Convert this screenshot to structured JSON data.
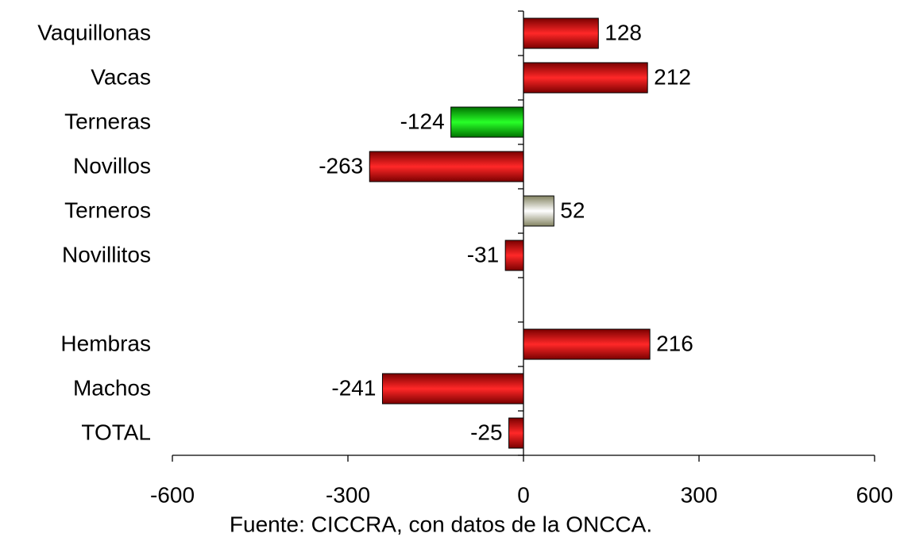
{
  "chart_data": {
    "type": "hbar",
    "categories": [
      "Vaquillonas",
      "Vacas",
      "Terneras",
      "Novillos",
      "Terneros",
      "Novillitos",
      null,
      "Hembras",
      "Machos",
      "TOTAL"
    ],
    "values": [
      128,
      212,
      -124,
      -263,
      52,
      -31,
      null,
      216,
      -241,
      -25
    ],
    "colors": [
      "#e00000",
      "#e00000",
      "#00d000",
      "#e00000",
      "#eeeeb0",
      "#e00000",
      null,
      "#e00000",
      "#e00000",
      "#e00000"
    ],
    "xlim": [
      -600,
      600
    ],
    "xticks": [
      -600,
      -300,
      0,
      300,
      600
    ],
    "source": "Fuente: CICCRA, con datos de la ONCCA."
  }
}
